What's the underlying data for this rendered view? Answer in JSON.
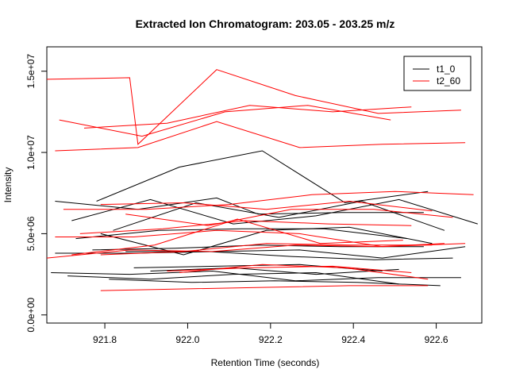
{
  "chart_data": {
    "type": "line",
    "title": "Extracted Ion Chromatogram: 203.05 - 203.25 m/z",
    "xlabel": "Retention Time (seconds)",
    "ylabel": "Intensity",
    "xlim": [
      921.66,
      922.71
    ],
    "ylim": [
      -500000,
      16500000
    ],
    "x_ticks": [
      921.8,
      922.0,
      922.2,
      922.4,
      922.6
    ],
    "x_tick_labels": [
      "921.8",
      "922.0",
      "922.2",
      "922.4",
      "922.6"
    ],
    "y_ticks": [
      0,
      5000000,
      10000000,
      15000000
    ],
    "y_tick_labels": [
      "0.0e+00",
      "5.0e+06",
      "1.0e+07",
      "1.5e+07"
    ],
    "legend": {
      "position": "top-right",
      "entries": [
        {
          "label": "t1_0",
          "color": "#000000"
        },
        {
          "label": "t2_60",
          "color": "#ff0000"
        }
      ]
    },
    "series": [
      {
        "group": "t1_0",
        "color": "#000000",
        "x": [
          921.68,
          921.88,
          922.07,
          922.17,
          922.37,
          922.57
        ],
        "y": [
          7000000,
          6500000,
          7200000,
          6200000,
          6300000,
          6300000
        ]
      },
      {
        "group": "t1_0",
        "color": "#000000",
        "x": [
          921.78,
          921.98,
          922.18,
          922.38,
          922.58
        ],
        "y": [
          7000000,
          9100000,
          10100000,
          6900000,
          7600000
        ]
      },
      {
        "group": "t1_0",
        "color": "#000000",
        "x": [
          921.72,
          921.91,
          922.11,
          922.31,
          922.51,
          922.7
        ],
        "y": [
          5800000,
          7100000,
          5600000,
          6100000,
          7100000,
          5600000
        ]
      },
      {
        "group": "t1_0",
        "color": "#000000",
        "x": [
          921.82,
          922.02,
          922.22,
          922.42,
          922.62
        ],
        "y": [
          5200000,
          6900000,
          6000000,
          7000000,
          5200000
        ]
      },
      {
        "group": "t1_0",
        "color": "#000000",
        "x": [
          921.73,
          921.93,
          922.13,
          922.33,
          922.53
        ],
        "y": [
          4700000,
          5200000,
          5300000,
          5300000,
          4700000
        ]
      },
      {
        "group": "t1_0",
        "color": "#000000",
        "x": [
          921.79,
          921.99,
          922.19,
          922.39,
          922.59
        ],
        "y": [
          5000000,
          3700000,
          5200000,
          5400000,
          4400000
        ]
      },
      {
        "group": "t1_0",
        "color": "#000000",
        "x": [
          921.77,
          921.97,
          922.17,
          922.37,
          922.57
        ],
        "y": [
          4000000,
          4100000,
          4300000,
          4200000,
          4200000
        ]
      },
      {
        "group": "t1_0",
        "color": "#000000",
        "x": [
          921.68,
          921.87,
          922.07,
          922.27,
          922.47,
          922.67
        ],
        "y": [
          3800000,
          3800000,
          3900000,
          4000000,
          3500000,
          4200000
        ]
      },
      {
        "group": "t1_0",
        "color": "#000000",
        "x": [
          921.85,
          922.05,
          922.25,
          922.45,
          922.64
        ],
        "y": [
          3900000,
          3900000,
          3600000,
          3400000,
          3500000
        ]
      },
      {
        "group": "t1_0",
        "color": "#000000",
        "x": [
          921.87,
          922.07,
          922.27,
          922.47
        ],
        "y": [
          2900000,
          3000000,
          3100000,
          2700000
        ]
      },
      {
        "group": "t1_0",
        "color": "#000000",
        "x": [
          921.91,
          922.11,
          922.31,
          922.51
        ],
        "y": [
          2700000,
          2900000,
          2500000,
          2800000
        ]
      },
      {
        "group": "t1_0",
        "color": "#000000",
        "x": [
          921.67,
          921.86,
          922.06,
          922.26,
          922.46,
          922.66
        ],
        "y": [
          2600000,
          2500000,
          2700000,
          2100000,
          2300000,
          2300000
        ]
      },
      {
        "group": "t1_0",
        "color": "#000000",
        "x": [
          921.71,
          921.91,
          922.11,
          922.31,
          922.51
        ],
        "y": [
          2400000,
          2200000,
          2500000,
          2600000,
          1900000
        ]
      },
      {
        "group": "t1_0",
        "color": "#000000",
        "x": [
          921.81,
          922.01,
          922.21,
          922.41,
          922.61
        ],
        "y": [
          2200000,
          2000000,
          2100000,
          2000000,
          1800000
        ]
      },
      {
        "group": "t2_60",
        "color": "#ff0000",
        "x": [
          921.66,
          921.86,
          921.88,
          922.07,
          922.26,
          922.46,
          922.66
        ],
        "y": [
          14500000,
          14600000,
          10500000,
          15100000,
          13500000,
          12400000,
          12600000
        ]
      },
      {
        "group": "t2_60",
        "color": "#ff0000",
        "x": [
          921.69,
          921.89,
          922.09,
          922.29,
          922.49
        ],
        "y": [
          12000000,
          11000000,
          12500000,
          12900000,
          12000000
        ]
      },
      {
        "group": "t2_60",
        "color": "#ff0000",
        "x": [
          921.75,
          921.95,
          922.15,
          922.35,
          922.54
        ],
        "y": [
          11500000,
          11800000,
          12900000,
          12500000,
          12800000
        ]
      },
      {
        "group": "t2_60",
        "color": "#ff0000",
        "x": [
          921.68,
          921.88,
          922.07,
          922.27,
          922.47,
          922.67
        ],
        "y": [
          10100000,
          10300000,
          11900000,
          10300000,
          10500000,
          10600000
        ]
      },
      {
        "group": "t2_60",
        "color": "#ff0000",
        "x": [
          921.7,
          921.9,
          922.1,
          922.3,
          922.5,
          922.69
        ],
        "y": [
          6500000,
          6500000,
          6800000,
          7400000,
          7600000,
          7400000
        ]
      },
      {
        "group": "t2_60",
        "color": "#ff0000",
        "x": [
          921.79,
          921.99,
          922.19,
          922.39,
          922.59
        ],
        "y": [
          6800000,
          6900000,
          6500000,
          7000000,
          6400000
        ]
      },
      {
        "group": "t2_60",
        "color": "#ff0000",
        "x": [
          921.85,
          922.05,
          922.25,
          922.45,
          922.64
        ],
        "y": [
          6200000,
          5500000,
          6500000,
          6500000,
          6000000
        ]
      },
      {
        "group": "t2_60",
        "color": "#ff0000",
        "x": [
          921.74,
          921.94,
          922.14,
          922.34,
          922.54
        ],
        "y": [
          5000000,
          5300000,
          5800000,
          5600000,
          5500000
        ]
      },
      {
        "group": "t2_60",
        "color": "#ff0000",
        "x": [
          921.68,
          921.87,
          922.07,
          922.27,
          922.47,
          922.67
        ],
        "y": [
          4800000,
          4800000,
          5200000,
          5000000,
          4200000,
          4400000
        ]
      },
      {
        "group": "t2_60",
        "color": "#ff0000",
        "x": [
          921.72,
          921.92,
          922.12,
          922.32,
          922.52
        ],
        "y": [
          3700000,
          4300000,
          5900000,
          4400000,
          4600000
        ]
      },
      {
        "group": "t2_60",
        "color": "#ff0000",
        "x": [
          921.66,
          921.86,
          922.06,
          922.26,
          922.46,
          922.62
        ],
        "y": [
          3500000,
          4000000,
          3900000,
          4300000,
          4200000,
          4400000
        ]
      },
      {
        "group": "t2_60",
        "color": "#ff0000",
        "x": [
          921.79,
          921.99,
          922.19,
          922.39,
          922.59
        ],
        "y": [
          3700000,
          3900000,
          4400000,
          4300000,
          4300000
        ]
      },
      {
        "group": "t2_60",
        "color": "#ff0000",
        "x": [
          921.95,
          922.15,
          922.35,
          922.54
        ],
        "y": [
          2700000,
          2900000,
          3000000,
          2600000
        ]
      },
      {
        "group": "t2_60",
        "color": "#ff0000",
        "x": [
          921.98,
          922.18,
          922.38,
          922.58
        ],
        "y": [
          2600000,
          3100000,
          2900000,
          2200000
        ]
      },
      {
        "group": "t2_60",
        "color": "#ff0000",
        "x": [
          921.79,
          921.99,
          922.19,
          922.39,
          922.58
        ],
        "y": [
          1500000,
          1600000,
          1700000,
          1800000,
          1800000
        ]
      }
    ]
  }
}
